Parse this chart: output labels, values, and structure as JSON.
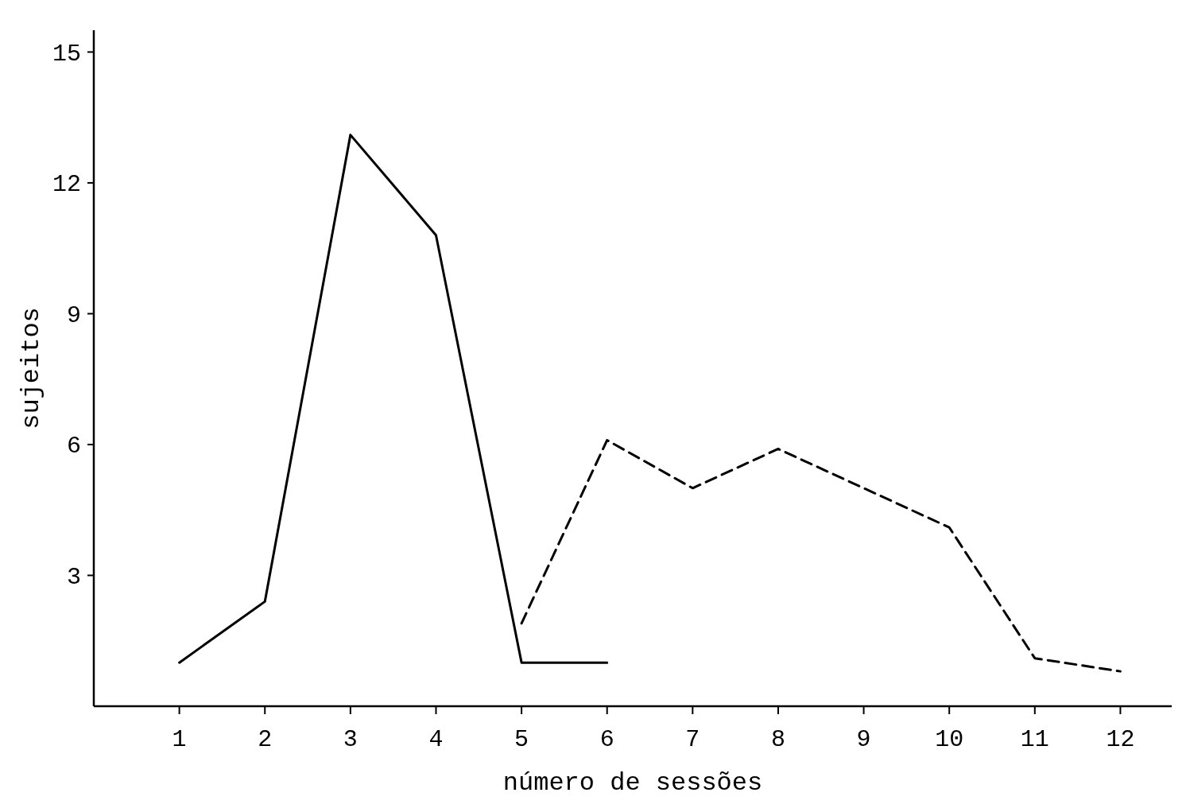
{
  "chart_data": {
    "type": "line",
    "xlabel": "número de sessões",
    "ylabel": "sujeitos",
    "xlim": [
      0,
      12.6
    ],
    "xticks": [
      1,
      2,
      3,
      4,
      5,
      6,
      7,
      8,
      9,
      10,
      11,
      12
    ],
    "ylim": [
      0,
      15.5
    ],
    "yticks": [
      3,
      6,
      9,
      12,
      15
    ],
    "marker": "none",
    "series": [
      {
        "color": "#000000",
        "line_style": "solid",
        "x": [
          1,
          2,
          3,
          4,
          5,
          6
        ],
        "values": [
          1,
          2.4,
          13.1,
          10.8,
          1,
          1
        ]
      },
      {
        "color": "#000000",
        "line_style": "dashed",
        "x": [
          5,
          6,
          7,
          8,
          9,
          10,
          11,
          12
        ],
        "values": [
          1.9,
          6.1,
          5,
          5.9,
          5,
          4.1,
          1.1,
          0.8
        ]
      }
    ]
  }
}
